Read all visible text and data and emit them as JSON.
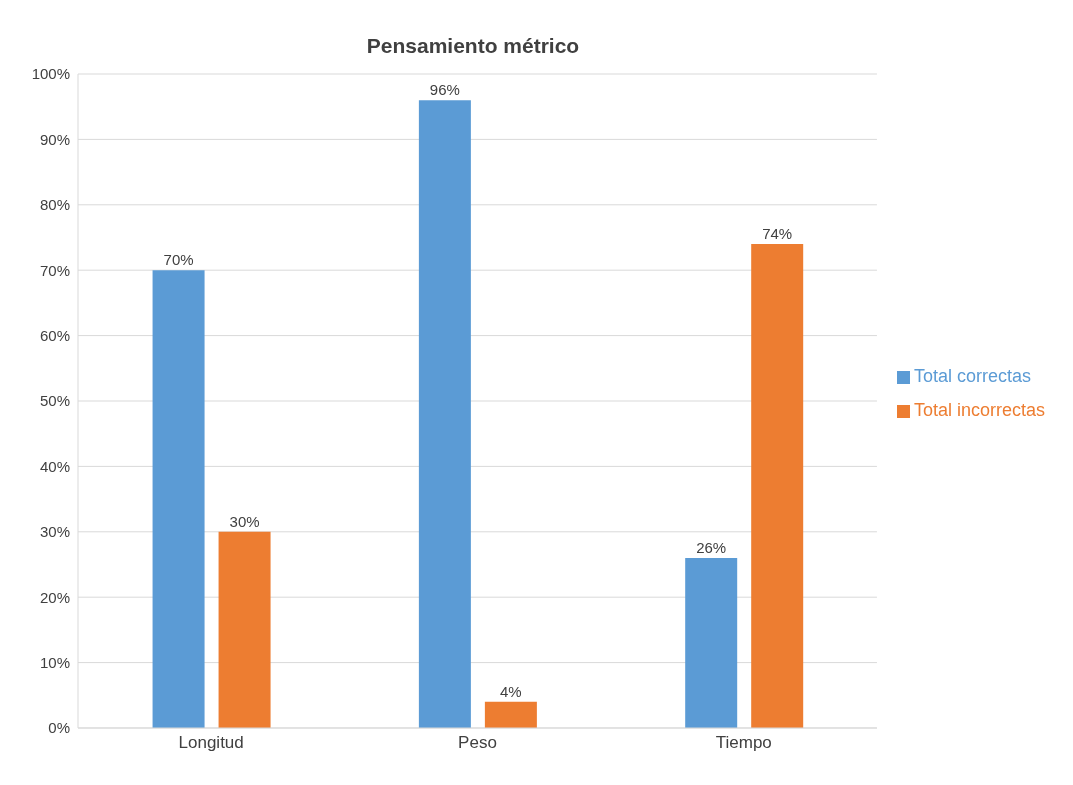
{
  "chart_data": {
    "type": "bar",
    "title": "Pensamiento métrico",
    "categories": [
      "Longitud",
      "Peso",
      "Tiempo"
    ],
    "series": [
      {
        "name": "Total correctas",
        "color": "#5b9bd5",
        "values": [
          70,
          96,
          26
        ],
        "value_labels": [
          "70%",
          "96%",
          "26%"
        ]
      },
      {
        "name": "Total incorrectas",
        "color": "#ed7d31",
        "values": [
          30,
          4,
          74
        ],
        "value_labels": [
          "30%",
          "4%",
          "74%"
        ]
      }
    ],
    "ylim": [
      0,
      100
    ],
    "yticks": [
      {
        "value": 0,
        "label": "0%"
      },
      {
        "value": 10,
        "label": "10%"
      },
      {
        "value": 20,
        "label": "20%"
      },
      {
        "value": 30,
        "label": "30%"
      },
      {
        "value": 40,
        "label": "40%"
      },
      {
        "value": 50,
        "label": "50%"
      },
      {
        "value": 60,
        "label": "60%"
      },
      {
        "value": 70,
        "label": "70%"
      },
      {
        "value": 80,
        "label": "80%"
      },
      {
        "value": 90,
        "label": "90%"
      },
      {
        "value": 100,
        "label": "100%"
      }
    ],
    "grid": "y",
    "legend": "right"
  }
}
